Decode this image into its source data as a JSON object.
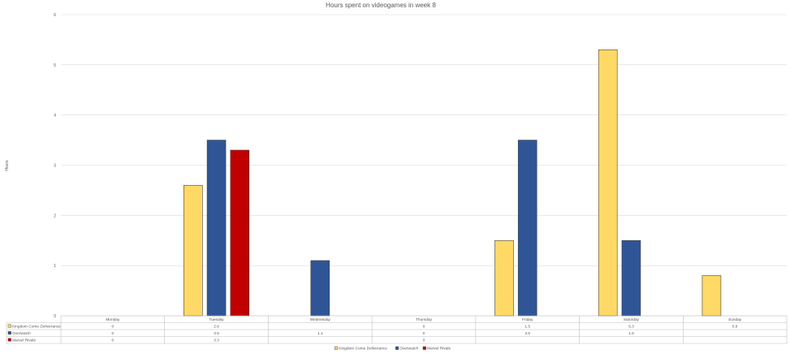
{
  "chart_data": {
    "type": "bar",
    "title": "Hours spent on videogames in week 8",
    "ylabel": "Hours",
    "xlabel": "",
    "ylim": [
      0,
      6
    ],
    "yticks": [
      "0",
      "1",
      "2",
      "3",
      "4",
      "5",
      "6"
    ],
    "grid": true,
    "legend_position": "bottom",
    "categories": [
      "Monday",
      "Tuesday",
      "Wednesday",
      "Thursday",
      "Friday",
      "Saturday",
      "Sunday"
    ],
    "series": [
      {
        "name": "Kingdom Come Deliverance",
        "color": "#FFD966",
        "values": [
          0,
          2.6,
          null,
          0,
          1.5,
          5.3,
          0.8
        ],
        "table_labels": [
          "0",
          "2.6",
          "",
          "0",
          "1.5",
          "5.3",
          "0.8"
        ]
      },
      {
        "name": "Overwatch",
        "color": "#2F5597",
        "values": [
          0,
          3.5,
          1.1,
          0,
          3.5,
          1.5,
          null
        ],
        "table_labels": [
          "0",
          "3.5",
          "1.1",
          "0",
          "3.5",
          "1.5",
          ""
        ]
      },
      {
        "name": "Marvel Rivals",
        "color": "#C00000",
        "values": [
          0,
          3.3,
          null,
          0,
          null,
          null,
          null
        ],
        "table_labels": [
          "0",
          "3.3",
          "",
          "0",
          "",
          "",
          ""
        ]
      }
    ]
  }
}
